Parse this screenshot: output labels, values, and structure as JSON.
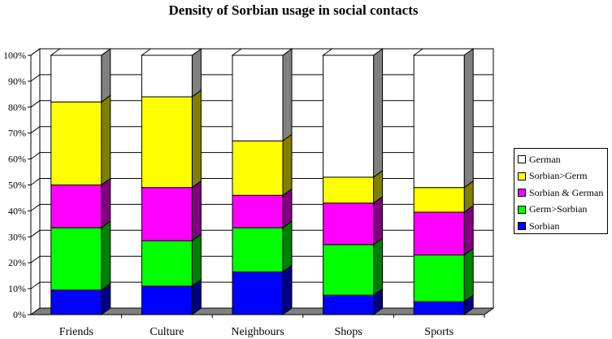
{
  "chart_data": {
    "type": "bar",
    "stacked": true,
    "percent_stacked": true,
    "three_d": true,
    "title": "Density of Sorbian usage in social contacts",
    "categories": [
      "Friends",
      "Culture",
      "Neighbours",
      "Shops",
      "Sports"
    ],
    "series": [
      {
        "name": "Sorbian",
        "color": "#0000ff",
        "values": [
          9.5,
          11,
          16.5,
          7.5,
          5
        ]
      },
      {
        "name": "Germ>Sorbian",
        "color": "#00ff00",
        "values": [
          24,
          17.5,
          17,
          19.5,
          18
        ]
      },
      {
        "name": "Sorbian & German",
        "color": "#ff00ff",
        "values": [
          16.5,
          20.5,
          12.5,
          16,
          16.5
        ]
      },
      {
        "name": "Sorbian>Germ",
        "color": "#ffff00",
        "values": [
          32,
          35,
          21,
          10,
          9.5
        ]
      },
      {
        "name": "German",
        "color": "#ffffff",
        "values": [
          18,
          16,
          33,
          47,
          51
        ]
      }
    ],
    "y_ticks": [
      "0%",
      "10%",
      "20%",
      "30%",
      "40%",
      "50%",
      "60%",
      "70%",
      "80%",
      "90%",
      "100%"
    ],
    "ylim": [
      0,
      100
    ],
    "grid": true,
    "legend_position": "right"
  }
}
